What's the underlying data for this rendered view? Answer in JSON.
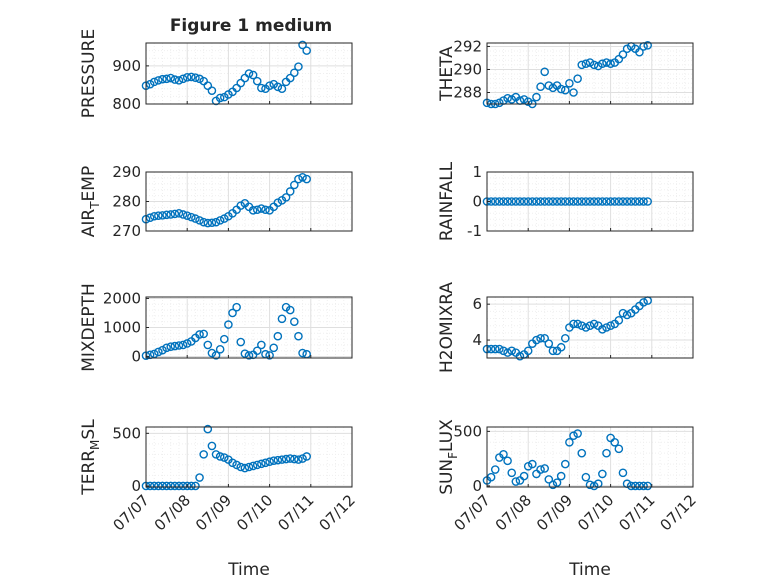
{
  "figure": {
    "title": "Figure 1 medium"
  },
  "chart_data": [
    {
      "type": "scatter",
      "panel": "PRESSURE",
      "title": "Figure 1 medium",
      "ylabel": "PRESSURE",
      "ylim": [
        800,
        960
      ],
      "yticks": [
        800,
        900
      ],
      "xlim": [
        0,
        5
      ],
      "xticks": [
        0,
        1,
        2,
        3,
        4,
        5
      ],
      "xticklabels": [
        "07/07",
        "07/08",
        "07/09",
        "07/10",
        "07/11",
        "07/12"
      ],
      "grid": true,
      "minor_grid": true,
      "x": [
        0.0,
        0.1,
        0.2,
        0.3,
        0.4,
        0.5,
        0.6,
        0.7,
        0.8,
        0.9,
        1.0,
        1.1,
        1.2,
        1.3,
        1.4,
        1.5,
        1.6,
        1.7,
        1.8,
        1.9,
        2.0,
        2.1,
        2.2,
        2.3,
        2.4,
        2.5,
        2.6,
        2.7,
        2.8,
        2.9,
        3.0,
        3.1,
        3.2,
        3.3,
        3.4,
        3.5,
        3.6,
        3.7,
        3.8,
        3.9
      ],
      "y": [
        848,
        852,
        858,
        862,
        865,
        866,
        868,
        864,
        862,
        866,
        870,
        871,
        869,
        866,
        860,
        848,
        835,
        808,
        816,
        818,
        825,
        832,
        842,
        855,
        868,
        880,
        876,
        860,
        842,
        840,
        848,
        852,
        845,
        840,
        858,
        868,
        882,
        898,
        955,
        940
      ]
    },
    {
      "type": "scatter",
      "panel": "THETA",
      "ylabel": "THETA",
      "ylim": [
        287,
        292.3
      ],
      "yticks": [
        288,
        290,
        292
      ],
      "xlim": [
        0,
        5
      ],
      "xticks": [
        0,
        1,
        2,
        3,
        4,
        5
      ],
      "xticklabels": [
        "07/07",
        "07/08",
        "07/09",
        "07/10",
        "07/11",
        "07/12"
      ],
      "grid": true,
      "minor_grid": true,
      "x": [
        0.0,
        0.1,
        0.2,
        0.3,
        0.4,
        0.5,
        0.6,
        0.7,
        0.8,
        0.9,
        1.0,
        1.1,
        1.2,
        1.3,
        1.4,
        1.5,
        1.6,
        1.7,
        1.8,
        1.9,
        2.0,
        2.1,
        2.2,
        2.3,
        2.4,
        2.5,
        2.6,
        2.7,
        2.8,
        2.9,
        3.0,
        3.1,
        3.2,
        3.3,
        3.4,
        3.5,
        3.6,
        3.7,
        3.8,
        3.9
      ],
      "y": [
        287.1,
        287.0,
        287.0,
        287.1,
        287.3,
        287.5,
        287.4,
        287.6,
        287.3,
        287.4,
        287.2,
        287.0,
        287.6,
        288.5,
        289.8,
        288.6,
        288.4,
        288.6,
        288.3,
        288.2,
        288.8,
        288.0,
        289.2,
        290.4,
        290.5,
        290.6,
        290.4,
        290.3,
        290.5,
        290.6,
        290.5,
        290.6,
        290.9,
        291.3,
        291.8,
        292.0,
        291.8,
        291.5,
        292.0,
        292.1
      ]
    },
    {
      "type": "scatter",
      "panel": "AIR_TEMP",
      "ylabel": "AIR",
      "ylabel_sub": "T",
      "ylabel_rest": "EMP",
      "ylim": [
        270,
        290
      ],
      "yticks": [
        270,
        280,
        290
      ],
      "xlim": [
        0,
        5
      ],
      "xticks": [
        0,
        1,
        2,
        3,
        4,
        5
      ],
      "xticklabels": [
        "07/07",
        "07/08",
        "07/09",
        "07/10",
        "07/11",
        "07/12"
      ],
      "grid": true,
      "minor_grid": true,
      "x": [
        0.0,
        0.1,
        0.2,
        0.3,
        0.4,
        0.5,
        0.6,
        0.7,
        0.8,
        0.9,
        1.0,
        1.1,
        1.2,
        1.3,
        1.4,
        1.5,
        1.6,
        1.7,
        1.8,
        1.9,
        2.0,
        2.1,
        2.2,
        2.3,
        2.4,
        2.5,
        2.6,
        2.7,
        2.8,
        2.9,
        3.0,
        3.1,
        3.2,
        3.3,
        3.4,
        3.5,
        3.6,
        3.7,
        3.8,
        3.9
      ],
      "y": [
        274,
        274.5,
        275,
        275.2,
        275.3,
        275.5,
        275.6,
        275.8,
        276,
        275.6,
        275.2,
        274.7,
        274.2,
        273.6,
        273.0,
        272.7,
        272.8,
        273.0,
        273.6,
        274.2,
        275.0,
        276.0,
        277.2,
        278.6,
        279.4,
        278.2,
        277.0,
        277.2,
        277.6,
        277.2,
        277.0,
        278.2,
        279.6,
        280.4,
        281.4,
        283.4,
        285.6,
        287.6,
        288.2,
        287.6
      ]
    },
    {
      "type": "scatter",
      "panel": "RAINFALL",
      "ylabel": "RAINFALL",
      "ylim": [
        -1,
        1
      ],
      "yticks": [
        -1,
        0,
        1
      ],
      "xlim": [
        0,
        5
      ],
      "xticks": [
        0,
        1,
        2,
        3,
        4,
        5
      ],
      "xticklabels": [
        "07/07",
        "07/08",
        "07/09",
        "07/10",
        "07/11",
        "07/12"
      ],
      "grid": true,
      "minor_grid": true,
      "x": [
        0.0,
        0.1,
        0.2,
        0.3,
        0.4,
        0.5,
        0.6,
        0.7,
        0.8,
        0.9,
        1.0,
        1.1,
        1.2,
        1.3,
        1.4,
        1.5,
        1.6,
        1.7,
        1.8,
        1.9,
        2.0,
        2.1,
        2.2,
        2.3,
        2.4,
        2.5,
        2.6,
        2.7,
        2.8,
        2.9,
        3.0,
        3.1,
        3.2,
        3.3,
        3.4,
        3.5,
        3.6,
        3.7,
        3.8,
        3.9
      ],
      "y": [
        0,
        0,
        0,
        0,
        0,
        0,
        0,
        0,
        0,
        0,
        0,
        0,
        0,
        0,
        0,
        0,
        0,
        0,
        0,
        0,
        0,
        0,
        0,
        0,
        0,
        0,
        0,
        0,
        0,
        0,
        0,
        0,
        0,
        0,
        0,
        0,
        0,
        0,
        0,
        0
      ]
    },
    {
      "type": "scatter",
      "panel": "MIXDEPTH",
      "ylabel": "MIXDEPTH",
      "ylim": [
        -50,
        2050
      ],
      "yticks": [
        0,
        1000,
        2000
      ],
      "xlim": [
        0,
        5
      ],
      "xticks": [
        0,
        1,
        2,
        3,
        4,
        5
      ],
      "xticklabels": [
        "07/07",
        "07/08",
        "07/09",
        "07/10",
        "07/11",
        "07/12"
      ],
      "grid": true,
      "minor_grid": true,
      "x": [
        0.0,
        0.1,
        0.2,
        0.3,
        0.4,
        0.5,
        0.6,
        0.7,
        0.8,
        0.9,
        1.0,
        1.1,
        1.2,
        1.3,
        1.4,
        1.5,
        1.6,
        1.7,
        1.8,
        1.9,
        2.0,
        2.1,
        2.2,
        2.3,
        2.4,
        2.5,
        2.6,
        2.7,
        2.8,
        2.9,
        3.0,
        3.1,
        3.2,
        3.3,
        3.4,
        3.5,
        3.6,
        3.7,
        3.8,
        3.9
      ],
      "y": [
        30,
        60,
        90,
        160,
        220,
        300,
        340,
        360,
        380,
        400,
        450,
        520,
        640,
        760,
        780,
        400,
        120,
        40,
        250,
        600,
        1100,
        1500,
        1700,
        500,
        100,
        40,
        60,
        200,
        400,
        80,
        40,
        300,
        700,
        1300,
        1700,
        1600,
        1200,
        700,
        120,
        80
      ]
    },
    {
      "type": "scatter",
      "panel": "H2OMIXRA",
      "ylabel": "H2OMIXRA",
      "ylim": [
        3,
        6.4
      ],
      "yticks": [
        4,
        6
      ],
      "xlim": [
        0,
        5
      ],
      "xticks": [
        0,
        1,
        2,
        3,
        4,
        5
      ],
      "xticklabels": [
        "07/07",
        "07/08",
        "07/09",
        "07/10",
        "07/11",
        "07/12"
      ],
      "grid": true,
      "minor_grid": true,
      "x": [
        0.0,
        0.1,
        0.2,
        0.3,
        0.4,
        0.5,
        0.6,
        0.7,
        0.8,
        0.9,
        1.0,
        1.1,
        1.2,
        1.3,
        1.4,
        1.5,
        1.6,
        1.7,
        1.8,
        1.9,
        2.0,
        2.1,
        2.2,
        2.3,
        2.4,
        2.5,
        2.6,
        2.7,
        2.8,
        2.9,
        3.0,
        3.1,
        3.2,
        3.3,
        3.4,
        3.5,
        3.6,
        3.7,
        3.8,
        3.9
      ],
      "y": [
        3.5,
        3.5,
        3.5,
        3.5,
        3.4,
        3.3,
        3.4,
        3.3,
        3.1,
        3.2,
        3.4,
        3.8,
        4.0,
        4.1,
        4.1,
        3.8,
        3.4,
        3.4,
        3.6,
        4.1,
        4.7,
        4.9,
        4.9,
        4.8,
        4.7,
        4.8,
        4.9,
        4.8,
        4.6,
        4.7,
        4.8,
        4.9,
        5.1,
        5.5,
        5.4,
        5.5,
        5.7,
        5.9,
        6.1,
        6.2
      ]
    },
    {
      "type": "scatter",
      "panel": "TERR_MSL",
      "ylabel": "TERR",
      "ylabel_sub": "M",
      "ylabel_rest": "SL",
      "ylim": [
        -10,
        560
      ],
      "yticks": [
        0,
        500
      ],
      "xlim": [
        0,
        5
      ],
      "xticks": [
        0,
        1,
        2,
        3,
        4,
        5
      ],
      "xticklabels": [
        "07/07",
        "07/08",
        "07/09",
        "07/10",
        "07/11",
        "07/12"
      ],
      "xlabel": "Time",
      "grid": true,
      "minor_grid": true,
      "x": [
        0.0,
        0.1,
        0.2,
        0.3,
        0.4,
        0.5,
        0.6,
        0.7,
        0.8,
        0.9,
        1.0,
        1.1,
        1.2,
        1.3,
        1.4,
        1.5,
        1.6,
        1.7,
        1.8,
        1.9,
        2.0,
        2.1,
        2.2,
        2.3,
        2.4,
        2.5,
        2.6,
        2.7,
        2.8,
        2.9,
        3.0,
        3.1,
        3.2,
        3.3,
        3.4,
        3.5,
        3.6,
        3.7,
        3.8,
        3.9
      ],
      "y": [
        0,
        0,
        0,
        0,
        0,
        0,
        0,
        0,
        0,
        0,
        0,
        0,
        0,
        80,
        300,
        540,
        380,
        300,
        280,
        270,
        250,
        220,
        200,
        180,
        170,
        180,
        190,
        200,
        210,
        220,
        230,
        240,
        245,
        250,
        255,
        260,
        255,
        250,
        260,
        280
      ]
    },
    {
      "type": "scatter",
      "panel": "SUN_FLUX",
      "ylabel": "SUN",
      "ylabel_sub": "F",
      "ylabel_rest": "LUX",
      "ylim": [
        -10,
        540
      ],
      "yticks": [
        0,
        500
      ],
      "xlim": [
        0,
        5
      ],
      "xticks": [
        0,
        1,
        2,
        3,
        4,
        5
      ],
      "xticklabels": [
        "07/07",
        "07/08",
        "07/09",
        "07/10",
        "07/11",
        "07/12"
      ],
      "xlabel": "Time",
      "grid": true,
      "minor_grid": true,
      "x": [
        0.0,
        0.1,
        0.2,
        0.3,
        0.4,
        0.5,
        0.6,
        0.7,
        0.8,
        0.9,
        1.0,
        1.1,
        1.2,
        1.3,
        1.4,
        1.5,
        1.6,
        1.7,
        1.8,
        1.9,
        2.0,
        2.1,
        2.2,
        2.3,
        2.4,
        2.5,
        2.6,
        2.7,
        2.8,
        2.9,
        3.0,
        3.1,
        3.2,
        3.3,
        3.4,
        3.5,
        3.6,
        3.7,
        3.8,
        3.9
      ],
      "y": [
        50,
        80,
        150,
        260,
        290,
        230,
        120,
        40,
        50,
        90,
        180,
        200,
        110,
        150,
        160,
        60,
        10,
        30,
        90,
        200,
        400,
        460,
        480,
        300,
        80,
        10,
        0,
        20,
        110,
        300,
        440,
        400,
        340,
        120,
        20,
        0,
        0,
        0,
        0,
        0
      ]
    }
  ],
  "colors": {
    "marker": "#0072BD",
    "axis": "#262626",
    "grid": "#dfdfdf",
    "minor_grid": "#efefef",
    "background": "#ffffff"
  }
}
